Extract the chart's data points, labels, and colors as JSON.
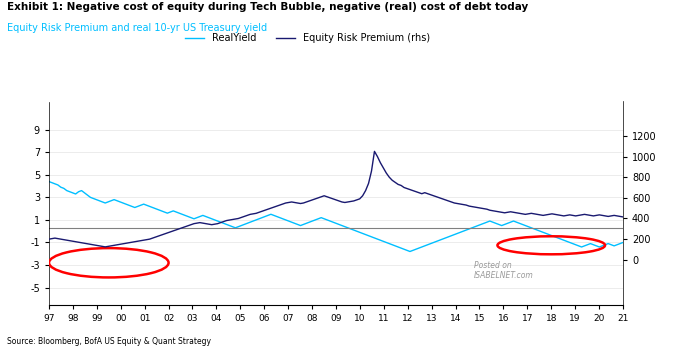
{
  "title": "Exhibit 1: Negative cost of equity during Tech Bubble, negative (real) cost of debt today",
  "subtitle": "Equity Risk Premium and real 10-yr US Treasury yield",
  "source": "Source: Bloomberg, BofA US Equity & Quant Strategy",
  "xlabel_ticks": [
    "97",
    "98",
    "99",
    "00",
    "01",
    "02",
    "03",
    "04",
    "05",
    "06",
    "07",
    "08",
    "09",
    "10",
    "11",
    "12",
    "13",
    "14",
    "15",
    "16",
    "17",
    "18",
    "19",
    "20",
    "21"
  ],
  "left_yticks": [
    -5,
    -3,
    -1,
    1,
    3,
    5,
    7,
    9
  ],
  "right_yticks": [
    0,
    200,
    400,
    600,
    800,
    1000,
    1200
  ],
  "left_ylim": [
    -6.5,
    11.5
  ],
  "right_ylim": [
    -433,
    1533
  ],
  "real_yield_color": "#00BFFF",
  "erp_color": "#191970",
  "zero_line_color": "#808080",
  "circle_color": "red",
  "background_color": "#ffffff",
  "legend_real_yield": "RealYield",
  "legend_erp": "Equity Risk Premium (rhs)",
  "watermark": "Posted on\nISABELNET.com",
  "real_yield": [
    4.4,
    4.3,
    4.2,
    4.1,
    3.9,
    3.8,
    3.6,
    3.5,
    3.4,
    3.3,
    3.5,
    3.6,
    3.4,
    3.2,
    3.0,
    2.9,
    2.8,
    2.7,
    2.6,
    2.5,
    2.6,
    2.7,
    2.8,
    2.7,
    2.6,
    2.5,
    2.4,
    2.3,
    2.2,
    2.1,
    2.2,
    2.3,
    2.4,
    2.3,
    2.2,
    2.1,
    2.0,
    1.9,
    1.8,
    1.7,
    1.6,
    1.7,
    1.8,
    1.7,
    1.6,
    1.5,
    1.4,
    1.3,
    1.2,
    1.1,
    1.2,
    1.3,
    1.4,
    1.3,
    1.2,
    1.1,
    1.0,
    0.9,
    0.8,
    0.7,
    0.6,
    0.5,
    0.4,
    0.3,
    0.4,
    0.5,
    0.6,
    0.7,
    0.8,
    0.9,
    1.0,
    1.1,
    1.2,
    1.3,
    1.4,
    1.5,
    1.4,
    1.3,
    1.2,
    1.1,
    1.0,
    0.9,
    0.8,
    0.7,
    0.6,
    0.5,
    0.6,
    0.7,
    0.8,
    0.9,
    1.0,
    1.1,
    1.2,
    1.1,
    1.0,
    0.9,
    0.8,
    0.7,
    0.6,
    0.5,
    0.4,
    0.3,
    0.2,
    0.1,
    0.0,
    -0.1,
    -0.2,
    -0.3,
    -0.4,
    -0.5,
    -0.6,
    -0.7,
    -0.8,
    -0.9,
    -1.0,
    -1.1,
    -1.2,
    -1.3,
    -1.4,
    -1.5,
    -1.6,
    -1.7,
    -1.8,
    -1.7,
    -1.6,
    -1.5,
    -1.4,
    -1.3,
    -1.2,
    -1.1,
    -1.0,
    -0.9,
    -0.8,
    -0.7,
    -0.6,
    -0.5,
    -0.4,
    -0.3,
    -0.2,
    -0.1,
    0.0,
    0.1,
    0.2,
    0.3,
    0.4,
    0.5,
    0.6,
    0.7,
    0.8,
    0.9,
    0.8,
    0.7,
    0.6,
    0.5,
    0.6,
    0.7,
    0.8,
    0.9,
    0.8,
    0.7,
    0.6,
    0.5,
    0.4,
    0.3,
    0.2,
    0.1,
    0.0,
    -0.1,
    -0.2,
    -0.3,
    -0.4,
    -0.5,
    -0.6,
    -0.7,
    -0.8,
    -0.9,
    -1.0,
    -1.1,
    -1.2,
    -1.3,
    -1.4,
    -1.3,
    -1.2,
    -1.1,
    -1.2,
    -1.3,
    -1.4,
    -1.3,
    -1.2,
    -1.1,
    -1.2,
    -1.3,
    -1.2,
    -1.1,
    -1.0
  ],
  "erp": [
    200,
    205,
    210,
    205,
    200,
    195,
    190,
    185,
    180,
    175,
    170,
    165,
    160,
    155,
    150,
    145,
    140,
    135,
    130,
    125,
    130,
    135,
    140,
    145,
    150,
    155,
    160,
    165,
    170,
    175,
    180,
    185,
    190,
    195,
    200,
    210,
    220,
    230,
    240,
    250,
    260,
    270,
    280,
    290,
    300,
    310,
    320,
    330,
    340,
    350,
    355,
    360,
    355,
    350,
    345,
    340,
    345,
    350,
    360,
    370,
    380,
    385,
    390,
    395,
    400,
    410,
    420,
    430,
    440,
    445,
    450,
    460,
    470,
    480,
    490,
    500,
    510,
    520,
    530,
    540,
    550,
    555,
    560,
    555,
    550,
    545,
    550,
    560,
    570,
    580,
    590,
    600,
    610,
    620,
    610,
    600,
    590,
    580,
    570,
    560,
    555,
    560,
    565,
    570,
    580,
    590,
    620,
    670,
    740,
    860,
    1050,
    1000,
    940,
    890,
    840,
    800,
    770,
    750,
    730,
    720,
    700,
    690,
    680,
    670,
    660,
    650,
    640,
    650,
    640,
    630,
    620,
    610,
    600,
    590,
    580,
    570,
    560,
    550,
    545,
    540,
    535,
    530,
    520,
    515,
    510,
    505,
    500,
    495,
    490,
    480,
    475,
    470,
    465,
    460,
    455,
    460,
    465,
    460,
    455,
    450,
    445,
    440,
    445,
    450,
    445,
    440,
    435,
    430,
    435,
    440,
    445,
    440,
    435,
    430,
    425,
    430,
    435,
    430,
    425,
    430,
    435,
    440,
    435,
    430,
    425,
    430,
    435,
    430,
    425,
    420,
    425,
    430,
    425,
    420,
    415
  ]
}
